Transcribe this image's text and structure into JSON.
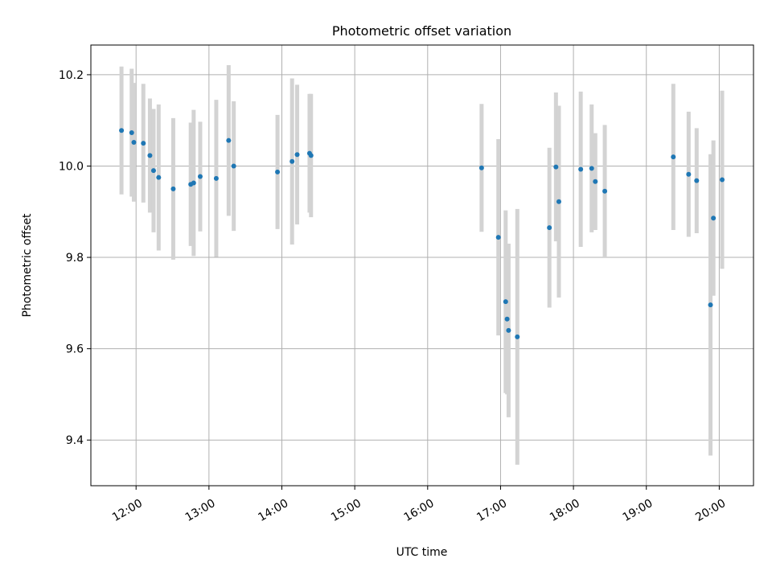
{
  "chart_data": {
    "type": "scatter",
    "title": "Photometric offset variation",
    "xlabel": "UTC time",
    "ylabel": "Photometric offset",
    "x_unit": "hours (UTC)",
    "xlim": [
      11.38,
      20.47
    ],
    "ylim": [
      9.3,
      10.265
    ],
    "x_ticks": [
      {
        "value": 12,
        "label": "12:00"
      },
      {
        "value": 13,
        "label": "13:00"
      },
      {
        "value": 14,
        "label": "14:00"
      },
      {
        "value": 15,
        "label": "15:00"
      },
      {
        "value": 16,
        "label": "16:00"
      },
      {
        "value": 17,
        "label": "17:00"
      },
      {
        "value": 18,
        "label": "18:00"
      },
      {
        "value": 19,
        "label": "19:00"
      },
      {
        "value": 20,
        "label": "20:00"
      }
    ],
    "y_ticks": [
      {
        "value": 9.4,
        "label": "9.4"
      },
      {
        "value": 9.6,
        "label": "9.6"
      },
      {
        "value": 9.8,
        "label": "9.8"
      },
      {
        "value": 10.0,
        "label": "10.0"
      },
      {
        "value": 10.2,
        "label": "10.2"
      }
    ],
    "grid": true,
    "marker_color": "#1f77b4",
    "errorbar_color": "#d3d3d3",
    "points": [
      {
        "x": 11.8,
        "y": 10.078,
        "err": 0.14
      },
      {
        "x": 11.94,
        "y": 10.073,
        "err": 0.14
      },
      {
        "x": 11.97,
        "y": 10.052,
        "err": 0.13
      },
      {
        "x": 12.1,
        "y": 10.05,
        "err": 0.13
      },
      {
        "x": 12.19,
        "y": 10.023,
        "err": 0.125
      },
      {
        "x": 12.24,
        "y": 9.99,
        "err": 0.135
      },
      {
        "x": 12.31,
        "y": 9.975,
        "err": 0.16
      },
      {
        "x": 12.51,
        "y": 9.95,
        "err": 0.155
      },
      {
        "x": 12.75,
        "y": 9.96,
        "err": 0.135
      },
      {
        "x": 12.79,
        "y": 9.963,
        "err": 0.16
      },
      {
        "x": 12.88,
        "y": 9.977,
        "err": 0.12
      },
      {
        "x": 13.1,
        "y": 9.973,
        "err": 0.172
      },
      {
        "x": 13.27,
        "y": 10.056,
        "err": 0.165
      },
      {
        "x": 13.34,
        "y": 10.0,
        "err": 0.142
      },
      {
        "x": 13.94,
        "y": 9.987,
        "err": 0.125
      },
      {
        "x": 14.14,
        "y": 10.01,
        "err": 0.182
      },
      {
        "x": 14.21,
        "y": 10.025,
        "err": 0.153
      },
      {
        "x": 14.38,
        "y": 10.028,
        "err": 0.13
      },
      {
        "x": 14.4,
        "y": 10.023,
        "err": 0.135
      },
      {
        "x": 16.74,
        "y": 9.996,
        "err": 0.14
      },
      {
        "x": 16.97,
        "y": 9.844,
        "err": 0.215
      },
      {
        "x": 17.07,
        "y": 9.703,
        "err": 0.2
      },
      {
        "x": 17.09,
        "y": 9.665,
        "err": 0.165
      },
      {
        "x": 17.11,
        "y": 9.64,
        "err": 0.19
      },
      {
        "x": 17.23,
        "y": 9.626,
        "err": 0.28
      },
      {
        "x": 17.67,
        "y": 9.865,
        "err": 0.175
      },
      {
        "x": 17.76,
        "y": 9.998,
        "err": 0.163
      },
      {
        "x": 17.8,
        "y": 9.922,
        "err": 0.21
      },
      {
        "x": 18.1,
        "y": 9.993,
        "err": 0.17
      },
      {
        "x": 18.25,
        "y": 9.995,
        "err": 0.14
      },
      {
        "x": 18.3,
        "y": 9.966,
        "err": 0.106
      },
      {
        "x": 18.43,
        "y": 9.945,
        "err": 0.145
      },
      {
        "x": 19.37,
        "y": 10.02,
        "err": 0.16
      },
      {
        "x": 19.58,
        "y": 9.982,
        "err": 0.137
      },
      {
        "x": 19.69,
        "y": 9.968,
        "err": 0.115
      },
      {
        "x": 19.88,
        "y": 9.696,
        "err": 0.33
      },
      {
        "x": 19.92,
        "y": 9.886,
        "err": 0.17
      },
      {
        "x": 20.04,
        "y": 9.97,
        "err": 0.195
      }
    ]
  }
}
